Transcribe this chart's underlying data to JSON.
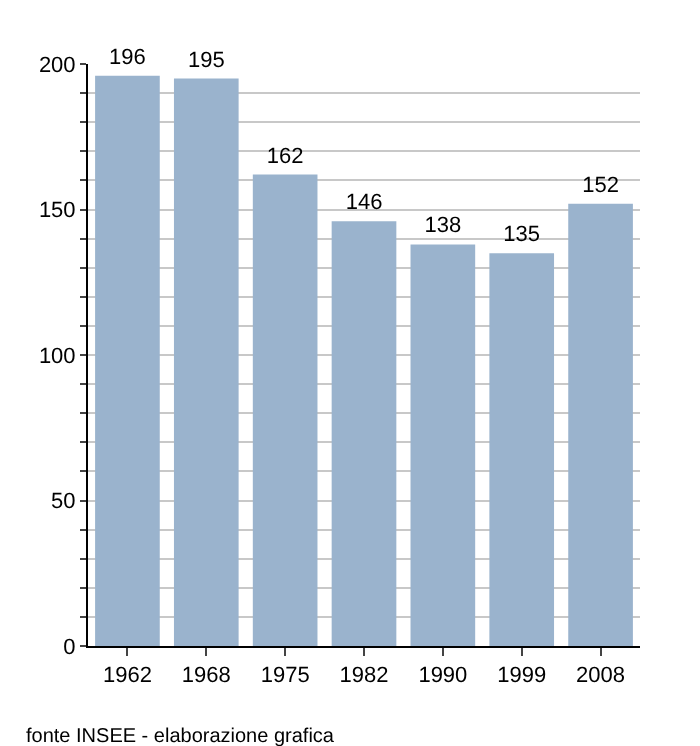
{
  "chart_data": {
    "type": "bar",
    "categories": [
      "1962",
      "1968",
      "1975",
      "1982",
      "1990",
      "1999",
      "2008"
    ],
    "values": [
      196,
      195,
      162,
      146,
      138,
      135,
      152
    ],
    "color": "#9ab3cd",
    "data_labels": true,
    "ylim": [
      0,
      200
    ],
    "yticks": [
      0,
      {
        "value": 10,
        "label": null
      },
      {
        "value": 20,
        "label": null
      },
      {
        "value": 30,
        "label": null
      },
      {
        "value": 40,
        "label": null
      },
      50,
      {
        "value": 60,
        "label": null
      },
      {
        "value": 70,
        "label": null
      },
      {
        "value": 80,
        "label": null
      },
      {
        "value": 90,
        "label": null
      },
      100,
      {
        "value": 110,
        "label": null
      },
      {
        "value": 120,
        "label": null
      },
      {
        "value": 130,
        "label": null
      },
      {
        "value": 140,
        "label": null
      },
      150,
      {
        "value": 160,
        "label": null
      },
      {
        "value": 170,
        "label": null
      },
      {
        "value": 180,
        "label": null
      },
      {
        "value": 190,
        "label": null
      },
      200
    ],
    "grid": "y",
    "annotations": [
      "fonte INSEE - elaborazione grafica"
    ]
  }
}
